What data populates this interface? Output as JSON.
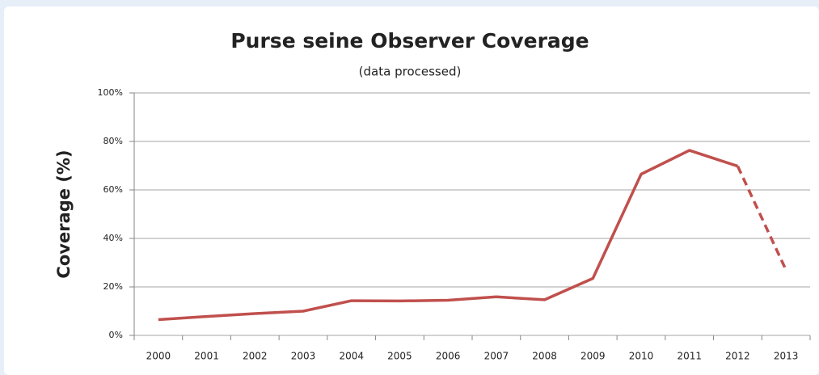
{
  "chart_data": {
    "type": "line",
    "title": "Purse seine Observer Coverage",
    "subtitle": "(data processed)",
    "y_label": "Coverage (%)",
    "categories": [
      "2000",
      "2001",
      "2002",
      "2003",
      "2004",
      "2005",
      "2006",
      "2007",
      "2008",
      "2009",
      "2010",
      "2011",
      "2012",
      "2013"
    ],
    "series": [
      {
        "color": "#c0504d",
        "dashed": false,
        "values": [
          6.5,
          7.8,
          9,
          10,
          14.3,
          14.2,
          14.5,
          15.9,
          14.7,
          23.5,
          66.5,
          76.3,
          69.8,
          null
        ]
      },
      {
        "color": "#c0504d",
        "dashed": true,
        "values": [
          null,
          null,
          null,
          null,
          null,
          null,
          null,
          null,
          null,
          null,
          null,
          null,
          69.8,
          27
        ]
      }
    ],
    "ylim": [
      0,
      100
    ],
    "yticks": [
      {
        "value": 0,
        "label": "0%"
      },
      {
        "value": 20,
        "label": "20%"
      },
      {
        "value": 40,
        "label": "40%"
      },
      {
        "value": 60,
        "label": "60%"
      },
      {
        "value": 80,
        "label": "80%"
      },
      {
        "value": 100,
        "label": "100%"
      }
    ],
    "grid": true
  }
}
